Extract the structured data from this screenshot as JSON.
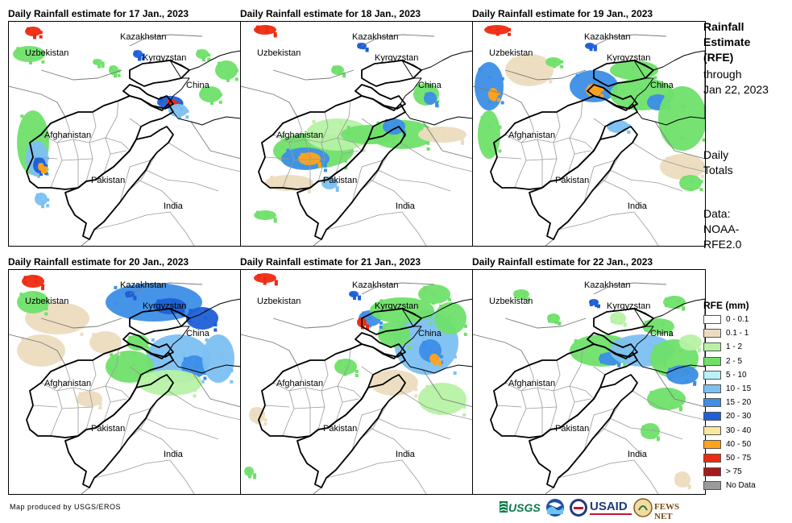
{
  "panels": [
    {
      "title": "Daily Rainfall estimate for 17 Jan., 2023"
    },
    {
      "title": "Daily Rainfall estimate for 18 Jan., 2023"
    },
    {
      "title": "Daily Rainfall estimate for 19 Jan., 2023"
    },
    {
      "title": "Daily Rainfall estimate for 20 Jan., 2023"
    },
    {
      "title": "Daily Rainfall estimate for 21 Jan., 2023"
    },
    {
      "title": "Daily Rainfall estimate for 22 Jan., 2023"
    }
  ],
  "map_labels": {
    "kazakhstan": "Kazakhstan",
    "uzbekistan": "Uzbekistan",
    "kyrgyzstan": "Kyrgyzstan",
    "china": "China",
    "afghanistan": "Afghanistan",
    "pakistan": "Pakistan",
    "india": "India"
  },
  "side_info": {
    "heading": [
      "Rainfall",
      "Estimate",
      "(RFE)"
    ],
    "through": [
      "through",
      "Jan 22, 2023"
    ],
    "totals": [
      "Daily",
      "Totals"
    ],
    "data": [
      "Data:",
      "NOAA-",
      "RFE2.0"
    ]
  },
  "legend": {
    "title": "RFE (mm)",
    "items": [
      {
        "label": "0 - 0.1",
        "color": "#ffffff"
      },
      {
        "label": "0.1 - 1",
        "color": "#ecdcbf"
      },
      {
        "label": "1 - 2",
        "color": "#b6f2a4"
      },
      {
        "label": "2 - 5",
        "color": "#6fe06a"
      },
      {
        "label": "5 - 10",
        "color": "#b8f1f7"
      },
      {
        "label": "10 - 15",
        "color": "#7cc0f2"
      },
      {
        "label": "15 - 20",
        "color": "#3c8ee6"
      },
      {
        "label": "20 - 30",
        "color": "#1f5fd6"
      },
      {
        "label": "30 - 40",
        "color": "#fde79a"
      },
      {
        "label": "40 - 50",
        "color": "#ffa31a"
      },
      {
        "label": "50 - 75",
        "color": "#ee2a10"
      },
      {
        "label": "> 75",
        "color": "#a31d1d"
      },
      {
        "label": "No Data",
        "color": "#9a9a9a"
      }
    ]
  },
  "footer": "Map produced by USGS/EROS",
  "logos": [
    "USGS",
    "NOAA",
    "USAID",
    "FEWS NET"
  ]
}
